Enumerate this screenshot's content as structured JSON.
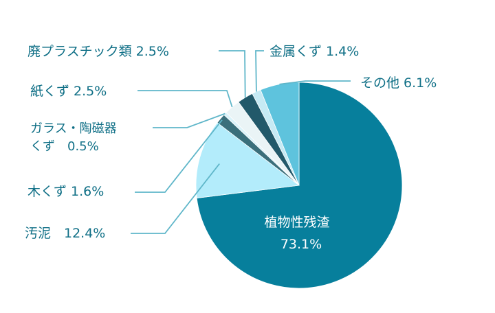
{
  "chart_data": {
    "type": "pie",
    "slices": [
      {
        "label": "植物性残渣",
        "value": 73.1,
        "value_label": "73.1%",
        "color": "#077f9c"
      },
      {
        "label": "汚泥",
        "value": 12.4,
        "value_label": "12.4%",
        "color": "#b3ecfb"
      },
      {
        "label": "木くず",
        "value": 1.6,
        "value_label": "1.6%",
        "color": "#3a6f7b"
      },
      {
        "label": "ガラス・陶磁器くず",
        "value": 0.5,
        "value_label": "0.5%",
        "color": "#d9f2f9"
      },
      {
        "label": "紙くず",
        "value": 2.5,
        "value_label": "2.5%",
        "color": "#eaf4f6"
      },
      {
        "label": "廃プラスチック類",
        "value": 2.5,
        "value_label": "2.5%",
        "color": "#22596a"
      },
      {
        "label": "金属くず",
        "value": 1.4,
        "value_label": "1.4%",
        "color": "#c6eaf4"
      },
      {
        "label": "その他",
        "value": 6.1,
        "value_label": "6.1%",
        "color": "#5ec3dd"
      }
    ],
    "labels": {
      "plant": {
        "name": "植物性残渣",
        "value": "73.1%"
      },
      "sludge": "汚泥　12.4%",
      "wood": "木くず 1.6%",
      "glass_line1": "ガラス・陶磁器",
      "glass_line2": "くず　0.5%",
      "paper": "紙くず 2.5%",
      "plastic": "廃プラスチック類 2.5%",
      "metal": "金属くず 1.4%",
      "other": "その他 6.1%"
    },
    "start_angle_deg": -90,
    "direction": "clockwise",
    "leader_color": "#5fb6c9"
  }
}
